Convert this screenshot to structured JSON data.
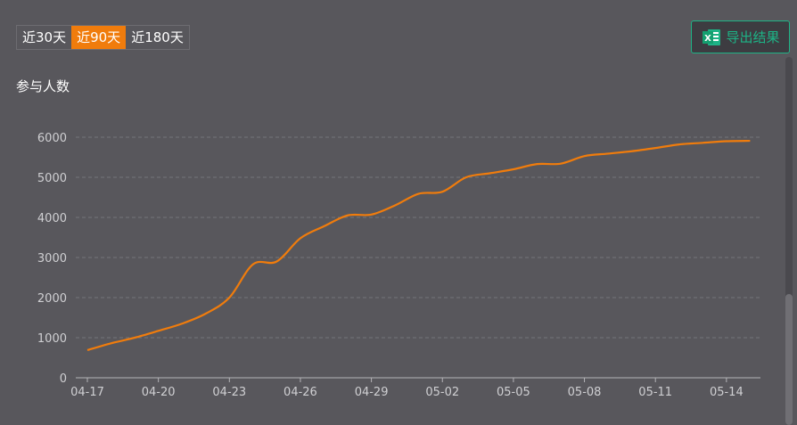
{
  "range_tabs": [
    "近30天",
    "近90天",
    "近180天"
  ],
  "active_tab": 1,
  "export_label": "导出结果",
  "export_icon": "excel-icon",
  "colors": {
    "line": "#f07c0c",
    "accent": "#1db386",
    "background": "#58575c"
  },
  "chart_data": {
    "type": "line",
    "title": "",
    "ylabel": "参与人数",
    "xlabel": "",
    "ylim": [
      0,
      6000
    ],
    "yticks": [
      0,
      1000,
      2000,
      3000,
      4000,
      5000,
      6000
    ],
    "x_tick_labels": [
      "04-17",
      "04-20",
      "04-23",
      "04-26",
      "04-29",
      "05-02",
      "05-05",
      "05-08",
      "05-11",
      "05-14"
    ],
    "x": [
      "04-17",
      "04-18",
      "04-19",
      "04-20",
      "04-21",
      "04-22",
      "04-23",
      "04-24",
      "04-25",
      "04-26",
      "04-27",
      "04-28",
      "04-29",
      "04-30",
      "05-01",
      "05-02",
      "05-03",
      "05-04",
      "05-05",
      "05-06",
      "05-07",
      "05-08",
      "05-09",
      "05-10",
      "05-11",
      "05-12",
      "05-13",
      "05-14",
      "05-15"
    ],
    "series": [
      {
        "values": [
          690,
          860,
          1000,
          1170,
          1350,
          1600,
          2000,
          2830,
          2900,
          3480,
          3780,
          4050,
          4070,
          4300,
          4590,
          4640,
          5000,
          5100,
          5200,
          5330,
          5340,
          5530,
          5590,
          5650,
          5730,
          5820,
          5860,
          5900,
          5910
        ]
      }
    ],
    "grid": true,
    "legend": "none"
  }
}
